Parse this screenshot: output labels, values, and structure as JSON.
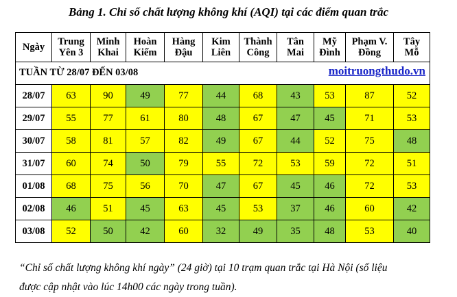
{
  "title": "Bảng 1. Chỉ số chất lượng không khí (AQI) tại các điểm quan trắc",
  "columns": [
    {
      "line1": "Ngày",
      "line2": ""
    },
    {
      "line1": "Trung",
      "line2": "Yên 3"
    },
    {
      "line1": "Minh",
      "line2": "Khai"
    },
    {
      "line1": "Hoàn",
      "line2": "Kiếm"
    },
    {
      "line1": "Hàng",
      "line2": "Đậu"
    },
    {
      "line1": "Kim",
      "line2": "Liên"
    },
    {
      "line1": "Thành",
      "line2": "Công"
    },
    {
      "line1": "Tân",
      "line2": "Mai"
    },
    {
      "line1": "Mỹ",
      "line2": "Đình"
    },
    {
      "line1": "Phạm V.",
      "line2": "Đồng"
    },
    {
      "line1": "Tây",
      "line2": "Mỗ"
    }
  ],
  "week_label": "TUẦN TỪ 28/07 ĐẾN 03/08",
  "website": "moitruongthudo.vn",
  "level_colors": {
    "yellow": "#ffff00",
    "green": "#92d050"
  },
  "rows": [
    {
      "day": "28/07",
      "values": [
        "63",
        "90",
        "49",
        "77",
        "44",
        "68",
        "43",
        "53",
        "87",
        "52"
      ],
      "levels": [
        "y",
        "y",
        "g",
        "y",
        "g",
        "y",
        "g",
        "y",
        "y",
        "y"
      ]
    },
    {
      "day": "29/07",
      "values": [
        "55",
        "77",
        "61",
        "80",
        "48",
        "67",
        "47",
        "45",
        "71",
        "53"
      ],
      "levels": [
        "y",
        "y",
        "y",
        "y",
        "g",
        "y",
        "g",
        "g",
        "y",
        "y"
      ]
    },
    {
      "day": "30/07",
      "values": [
        "58",
        "81",
        "57",
        "82",
        "49",
        "67",
        "44",
        "52",
        "75",
        "48"
      ],
      "levels": [
        "y",
        "y",
        "y",
        "y",
        "g",
        "y",
        "g",
        "y",
        "y",
        "g"
      ]
    },
    {
      "day": "31/07",
      "values": [
        "60",
        "74",
        "50",
        "79",
        "55",
        "72",
        "53",
        "59",
        "72",
        "51"
      ],
      "levels": [
        "y",
        "y",
        "g",
        "y",
        "y",
        "y",
        "y",
        "y",
        "y",
        "y"
      ]
    },
    {
      "day": "01/08",
      "values": [
        "68",
        "75",
        "56",
        "70",
        "47",
        "67",
        "45",
        "46",
        "72",
        "53"
      ],
      "levels": [
        "y",
        "y",
        "y",
        "y",
        "g",
        "y",
        "g",
        "g",
        "y",
        "y"
      ]
    },
    {
      "day": "02/08",
      "values": [
        "46",
        "51",
        "45",
        "63",
        "45",
        "53",
        "37",
        "46",
        "60",
        "42"
      ],
      "levels": [
        "g",
        "y",
        "g",
        "y",
        "g",
        "y",
        "g",
        "g",
        "y",
        "g"
      ]
    },
    {
      "day": "03/08",
      "values": [
        "52",
        "50",
        "42",
        "60",
        "32",
        "49",
        "35",
        "48",
        "53",
        "40"
      ],
      "levels": [
        "y",
        "g",
        "g",
        "y",
        "g",
        "g",
        "g",
        "g",
        "y",
        "g"
      ]
    }
  ],
  "footnote": {
    "line1": "“Chỉ số chất lượng không khí ngày” (24 giờ) tại 10 trạm quan trắc tại Hà Nội (số liệu",
    "line2": "được cập nhật vào lúc 14h00 các ngày trong tuần)."
  }
}
